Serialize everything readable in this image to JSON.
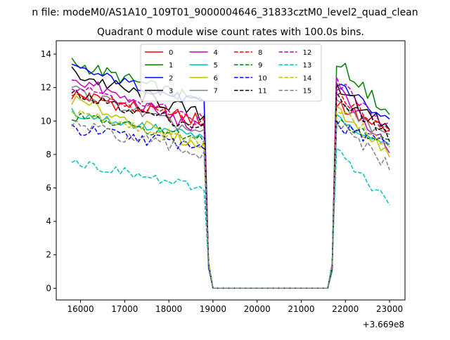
{
  "figure": {
    "suptitle": "n file: modeM0/AS1A10_109T01_9000004646_31833cztM0_level2_quad_clean",
    "title": "Quadrant 0 module wise count rates with 100.0s bins.",
    "x_offset_label": "+3.669e8"
  },
  "chart_data": {
    "type": "line",
    "title": "Quadrant 0 module wise count rates with 100.0s bins.",
    "xlabel": "",
    "ylabel": "",
    "x_offset": 366900000,
    "xlim": [
      15450,
      23350
    ],
    "ylim": [
      -0.7,
      14.8
    ],
    "xticks": [
      16000,
      17000,
      18000,
      19000,
      20000,
      21000,
      22000,
      23000
    ],
    "yticks": [
      0,
      2,
      4,
      6,
      8,
      10,
      12,
      14
    ],
    "grid": false,
    "legend": {
      "placement": "top-center",
      "columns": 4
    },
    "segments": [
      {
        "x_start": 15800,
        "x_end": 18800,
        "step": 100
      },
      {
        "x_start": 21800,
        "x_end": 23000,
        "step": 100
      }
    ],
    "drop": {
      "edge_left": [
        18900,
        19000
      ],
      "edge_right": [
        21600,
        21700
      ],
      "zero_range": [
        19000,
        21600
      ],
      "zero_step": 200
    },
    "series": [
      {
        "name": "0",
        "color": "#ff0000",
        "dash": "solid",
        "start_level": 11.6,
        "end_level": 10.0,
        "post_start": 11.0,
        "post_end": 9.2,
        "noise": 0.45
      },
      {
        "name": "1",
        "color": "#008000",
        "dash": "solid",
        "start_level": 13.5,
        "end_level": 11.1,
        "post_start": 13.6,
        "post_end": 10.4,
        "noise": 0.4
      },
      {
        "name": "2",
        "color": "#0000ff",
        "dash": "solid",
        "start_level": 13.2,
        "end_level": 11.0,
        "post_start": 12.3,
        "post_end": 10.0,
        "noise": 0.3
      },
      {
        "name": "3",
        "color": "#000000",
        "dash": "solid",
        "start_level": 12.9,
        "end_level": 10.3,
        "post_start": 11.9,
        "post_end": 9.6,
        "noise": 0.45
      },
      {
        "name": "4",
        "color": "#bf00bf",
        "dash": "solid",
        "start_level": 12.6,
        "end_level": 9.4,
        "post_start": 12.1,
        "post_end": 8.3,
        "noise": 0.4
      },
      {
        "name": "5",
        "color": "#00bfbf",
        "dash": "solid",
        "start_level": 10.5,
        "end_level": 9.0,
        "post_start": 10.2,
        "post_end": 8.6,
        "noise": 0.3
      },
      {
        "name": "6",
        "color": "#bfbf00",
        "dash": "solid",
        "start_level": 11.3,
        "end_level": 8.4,
        "post_start": 10.6,
        "post_end": 8.1,
        "noise": 0.35
      },
      {
        "name": "7",
        "color": "#808080",
        "dash": "solid",
        "start_level": 11.9,
        "end_level": 9.2,
        "post_start": 11.2,
        "post_end": 8.9,
        "noise": 0.35
      },
      {
        "name": "8",
        "color": "#ff0000",
        "dash": "dashed",
        "start_level": 11.8,
        "end_level": 9.9,
        "post_start": 11.7,
        "post_end": 9.2,
        "noise": 0.35
      },
      {
        "name": "9",
        "color": "#008000",
        "dash": "dashed",
        "start_level": 10.3,
        "end_level": 8.9,
        "post_start": 10.0,
        "post_end": 8.7,
        "noise": 0.3
      },
      {
        "name": "10",
        "color": "#0000ff",
        "dash": "dashed",
        "start_level": 9.5,
        "end_level": 8.5,
        "post_start": 9.7,
        "post_end": 8.5,
        "noise": 0.4
      },
      {
        "name": "11",
        "color": "#000000",
        "dash": "dashed",
        "start_level": 11.6,
        "end_level": 9.6,
        "post_start": 11.5,
        "post_end": 9.1,
        "noise": 0.35
      },
      {
        "name": "12",
        "color": "#bf00bf",
        "dash": "dashed",
        "start_level": 12.0,
        "end_level": 10.1,
        "post_start": 12.4,
        "post_end": 9.6,
        "noise": 0.35
      },
      {
        "name": "13",
        "color": "#00bfbf",
        "dash": "dashed",
        "start_level": 7.6,
        "end_level": 5.9,
        "post_start": 8.3,
        "post_end": 5.0,
        "noise": 0.3
      },
      {
        "name": "14",
        "color": "#bfbf00",
        "dash": "dashed",
        "start_level": 10.6,
        "end_level": 8.6,
        "post_start": 10.8,
        "post_end": 8.3,
        "noise": 0.3
      },
      {
        "name": "15",
        "color": "#808080",
        "dash": "dashed",
        "start_level": 9.8,
        "end_level": 8.0,
        "post_start": 10.0,
        "post_end": 7.2,
        "noise": 0.4
      }
    ]
  }
}
